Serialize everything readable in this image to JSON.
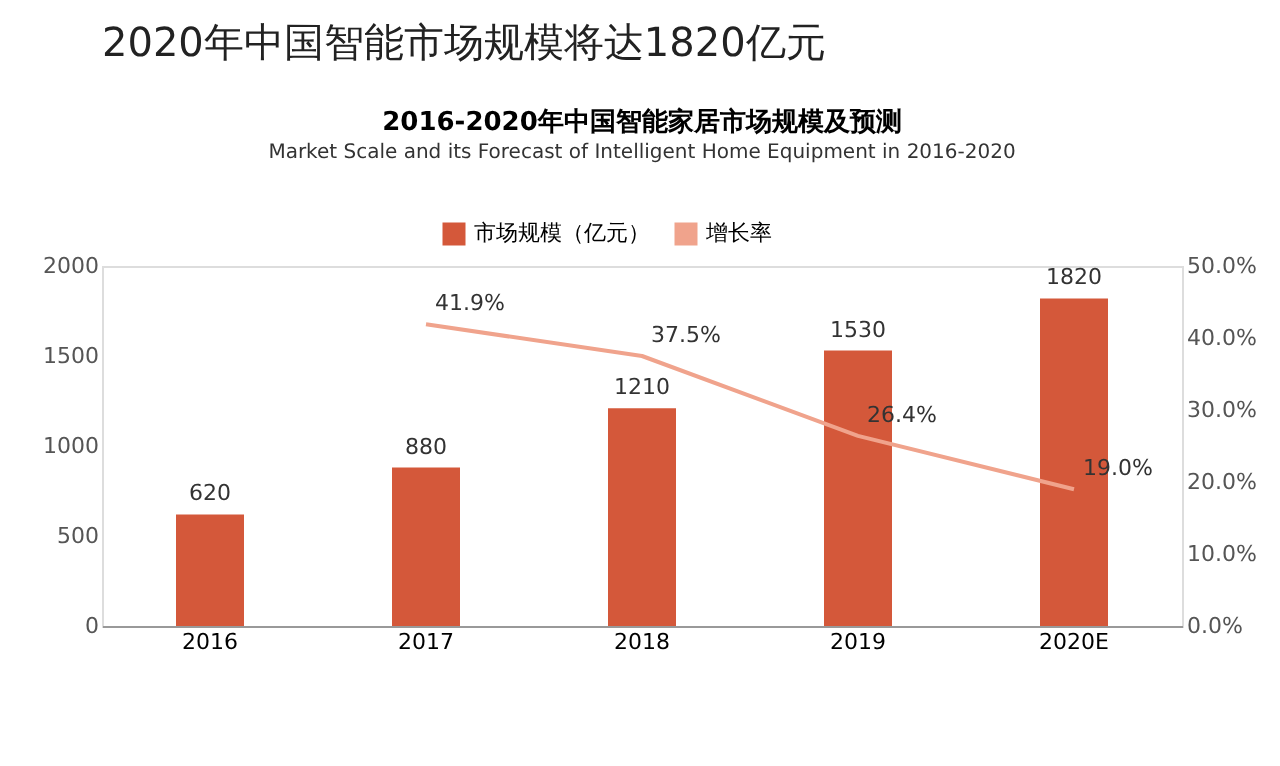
{
  "chart_data": {
    "type": "bar",
    "title": "2016-2020年中国智能家居市场规模及预测",
    "subtitle": "Market Scale and its Forecast of Intelligent Home Equipment in 2016-2020",
    "annotations": [
      "2020年中国智能市场规模将达1820亿元"
    ],
    "categories": [
      "2016",
      "2017",
      "2018",
      "2019",
      "2020E"
    ],
    "series": [
      {
        "name": "市场规模（亿元）",
        "color": "#d4583a",
        "values": [
          620,
          880,
          1210,
          1530,
          1820
        ],
        "value_labels": [
          "620",
          "880",
          "1210",
          "1530",
          "1820"
        ]
      },
      {
        "name": "增长率",
        "type": "line",
        "axis": "y2",
        "color": "#f0a38c",
        "values": [
          null,
          41.9,
          37.5,
          26.4,
          19.0
        ],
        "value_labels": [
          null,
          "41.9%",
          "37.5%",
          "26.4%",
          "19.0%"
        ]
      }
    ],
    "ylim": [
      0,
      2000
    ],
    "yticks": [
      0,
      500,
      1000,
      1500,
      2000
    ],
    "y2lim": [
      0,
      50
    ],
    "y2ticks": [
      {
        "value": 0,
        "label": "0.0%"
      },
      {
        "value": 10,
        "label": "10.0%"
      },
      {
        "value": 20,
        "label": "20.0%"
      },
      {
        "value": 30,
        "label": "30.0%"
      },
      {
        "value": 40,
        "label": "40.0%"
      },
      {
        "value": 50,
        "label": "50.0%"
      }
    ],
    "legend": "top",
    "grid": false,
    "marker": "none"
  }
}
